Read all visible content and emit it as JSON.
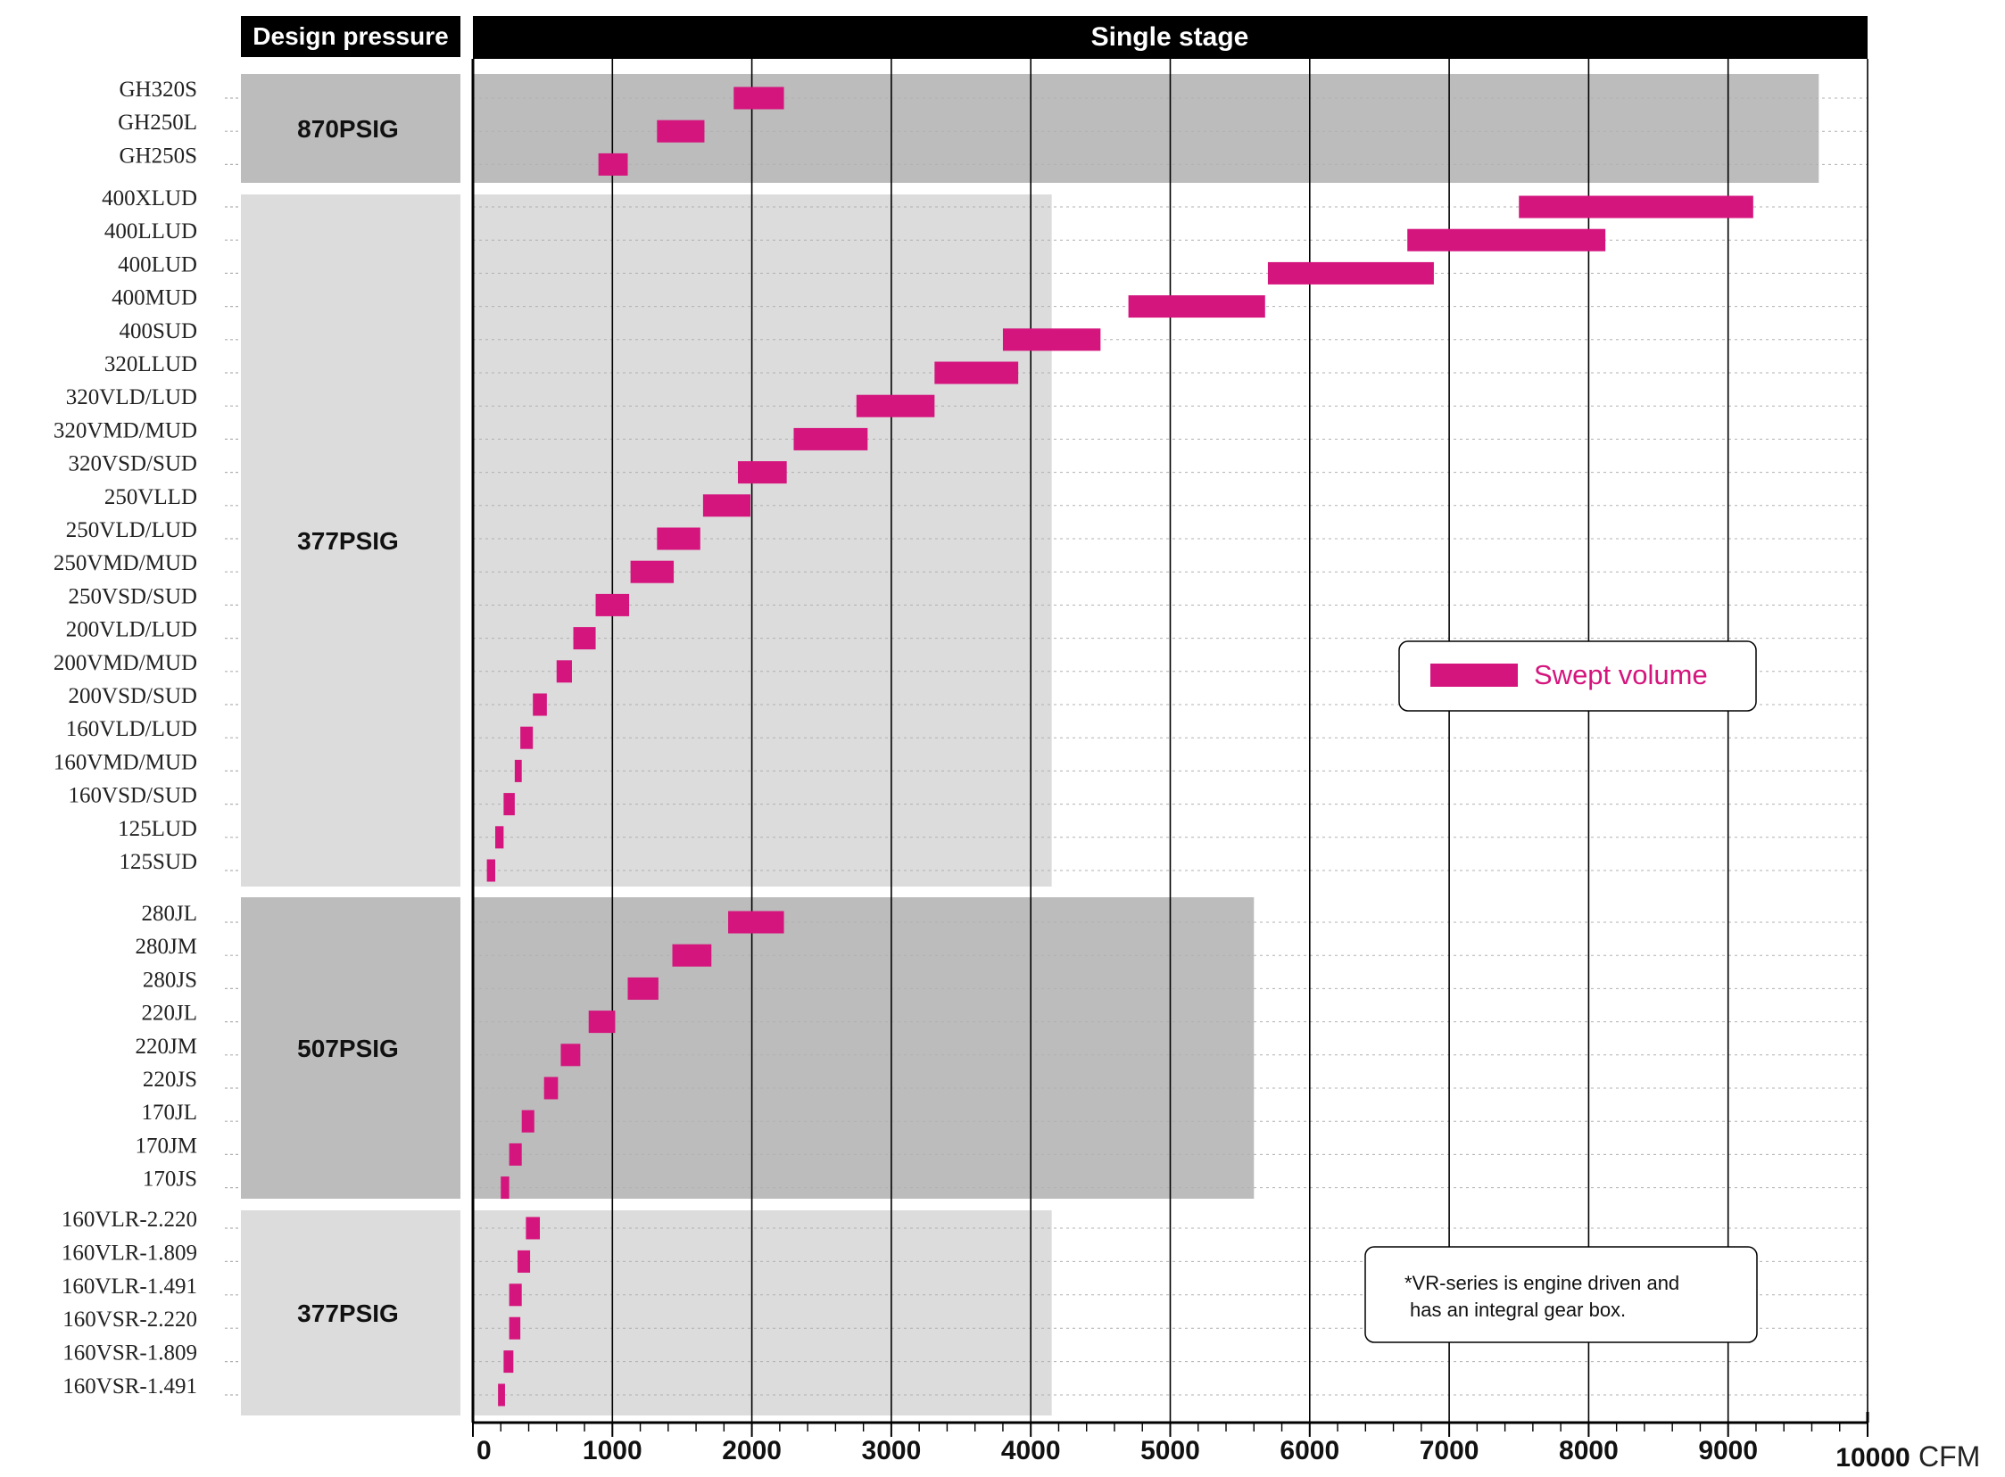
{
  "colors": {
    "bar": "#d4157d",
    "header_bg": "#000000",
    "band_dark": "#bcbcbc",
    "band_light": "#dcdcdc",
    "grid": "#000000",
    "row_guide": "#b0b0b0"
  },
  "header": {
    "left": "Design pressure",
    "right": "Single stage"
  },
  "legend": {
    "label": "Swept volume"
  },
  "note": {
    "line1": "*VR-series is engine driven and",
    "line2": "has an integral gear box."
  },
  "chart_data": {
    "type": "bar",
    "orientation": "horizontal-range",
    "xlabel": "CFM",
    "xlim": [
      0,
      10000
    ],
    "xticks": [
      "0",
      "1000",
      "2000",
      "3000",
      "4000",
      "5000",
      "6000",
      "7000",
      "8000",
      "9000",
      "10000"
    ],
    "grid": true,
    "legend_position": "middle-right",
    "series_name": "Swept volume",
    "groups": [
      {
        "pressure": "870PSIG",
        "band_extent": 9650,
        "rows": [
          {
            "model": "GH320S",
            "range": [
              1870,
              2230
            ]
          },
          {
            "model": "GH250L",
            "range": [
              1320,
              1660
            ]
          },
          {
            "model": "GH250S",
            "range": [
              900,
              1110
            ]
          }
        ]
      },
      {
        "pressure": "377PSIG",
        "band_extent": 4150,
        "rows": [
          {
            "model": "400XLUD",
            "range": [
              7500,
              9180
            ]
          },
          {
            "model": "400LLUD",
            "range": [
              6700,
              8120
            ]
          },
          {
            "model": "400LUD",
            "range": [
              5700,
              6890
            ]
          },
          {
            "model": "400MUD",
            "range": [
              4700,
              5680
            ]
          },
          {
            "model": "400SUD",
            "range": [
              3800,
              4500
            ]
          },
          {
            "model": "320LLUD",
            "range": [
              3310,
              3910
            ]
          },
          {
            "model": "320VLD/LUD",
            "range": [
              2750,
              3310
            ]
          },
          {
            "model": "320VMD/MUD",
            "range": [
              2300,
              2830
            ]
          },
          {
            "model": "320VSD/SUD",
            "range": [
              1900,
              2250
            ]
          },
          {
            "model": "250VLLD",
            "range": [
              1650,
              1990
            ]
          },
          {
            "model": "250VLD/LUD",
            "range": [
              1320,
              1630
            ]
          },
          {
            "model": "250VMD/MUD",
            "range": [
              1130,
              1440
            ]
          },
          {
            "model": "250VSD/SUD",
            "range": [
              880,
              1120
            ]
          },
          {
            "model": "200VLD/LUD",
            "range": [
              720,
              880
            ]
          },
          {
            "model": "200VMD/MUD",
            "range": [
              600,
              710
            ]
          },
          {
            "model": "200VSD/SUD",
            "range": [
              430,
              530
            ]
          },
          {
            "model": "160VLD/LUD",
            "range": [
              340,
              430
            ]
          },
          {
            "model": "160VMD/MUD",
            "range": [
              300,
              350
            ]
          },
          {
            "model": "160VSD/SUD",
            "range": [
              220,
              300
            ]
          },
          {
            "model": "125LUD",
            "range": [
              160,
              220
            ]
          },
          {
            "model": "125SUD",
            "range": [
              100,
              160
            ]
          }
        ]
      },
      {
        "pressure": "507PSIG",
        "band_extent": 5600,
        "rows": [
          {
            "model": "280JL",
            "range": [
              1830,
              2230
            ]
          },
          {
            "model": "280JM",
            "range": [
              1430,
              1710
            ]
          },
          {
            "model": "280JS",
            "range": [
              1110,
              1330
            ]
          },
          {
            "model": "220JL",
            "range": [
              830,
              1020
            ]
          },
          {
            "model": "220JM",
            "range": [
              630,
              770
            ]
          },
          {
            "model": "220JS",
            "range": [
              510,
              610
            ]
          },
          {
            "model": "170JL",
            "range": [
              350,
              440
            ]
          },
          {
            "model": "170JM",
            "range": [
              260,
              350
            ]
          },
          {
            "model": "170JS",
            "range": [
              200,
              260
            ]
          }
        ]
      },
      {
        "pressure": "377PSIG",
        "band_extent": 4150,
        "rows": [
          {
            "model": "160VLR-2.220",
            "range": [
              380,
              480
            ]
          },
          {
            "model": "160VLR-1.809",
            "range": [
              320,
              410
            ]
          },
          {
            "model": "160VLR-1.491",
            "range": [
              260,
              350
            ]
          },
          {
            "model": "160VSR-2.220",
            "range": [
              260,
              340
            ]
          },
          {
            "model": "160VSR-1.809",
            "range": [
              220,
              290
            ]
          },
          {
            "model": "160VSR-1.491",
            "range": [
              180,
              230
            ]
          }
        ]
      }
    ]
  }
}
